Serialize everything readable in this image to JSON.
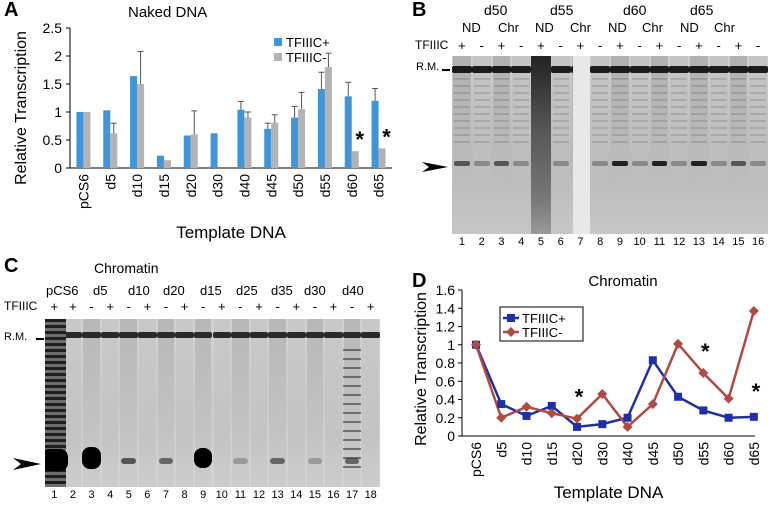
{
  "figure": {
    "panels": [
      {
        "label": "A"
      },
      {
        "label": "B"
      },
      {
        "label": "C"
      },
      {
        "label": "D"
      }
    ]
  },
  "panelA": {
    "chart_data": {
      "type": "bar",
      "title": "Naked DNA",
      "xlabel": "Template DNA",
      "ylabel": "Relative Transcription",
      "ylim": [
        0,
        2.5
      ],
      "yticks": [
        "0",
        "0.5",
        "1",
        "1.5",
        "2",
        "2.5"
      ],
      "categories": [
        "pCS6",
        "d5",
        "d10",
        "d15",
        "d20",
        "d30",
        "d40",
        "d45",
        "d50",
        "d55",
        "d60",
        "d65"
      ],
      "series": [
        {
          "name": "TFIIIC+",
          "color": "#3f95d9",
          "values": [
            1.0,
            1.03,
            1.64,
            0.22,
            0.58,
            0.62,
            1.04,
            0.7,
            0.9,
            1.41,
            1.28,
            1.2
          ],
          "errors": [
            0,
            0,
            0,
            0,
            0,
            0,
            0.15,
            0.1,
            0.2,
            0.3,
            0.25,
            0.22
          ]
        },
        {
          "name": "TFIIIC-",
          "color": "#b3b3b3",
          "values": [
            1.0,
            0.62,
            1.5,
            0.14,
            0.6,
            null,
            0.9,
            0.81,
            1.05,
            1.8,
            0.3,
            0.35
          ],
          "errors": [
            0,
            0.18,
            0.58,
            0,
            0.42,
            0,
            0.1,
            0.14,
            0.3,
            0.25,
            0,
            0
          ]
        }
      ],
      "legend": "top-right",
      "annotations": [
        "*",
        "*"
      ]
    }
  },
  "panelB": {
    "groups": [
      "d50",
      "d55",
      "d60",
      "d65"
    ],
    "sub_labels": [
      "ND",
      "Chr",
      "ND",
      "Chr",
      "ND",
      "Chr",
      "ND",
      "Chr"
    ],
    "factor_label": "TFIIIC",
    "plus_minus": [
      "+",
      "-",
      "+",
      "-",
      "+",
      "-",
      "+",
      "-",
      "+",
      "-",
      "+",
      "-",
      "+",
      "-",
      "+",
      "-"
    ],
    "rm_label": "R.M.",
    "lane_numbers": [
      "1",
      "2",
      "3",
      "4",
      "5",
      "6",
      "7",
      "8",
      "9",
      "10",
      "11",
      "12",
      "13",
      "14",
      "15",
      "16"
    ]
  },
  "panelC": {
    "title": "Chromatin",
    "templates": [
      "pCS6",
      "d5",
      "d10",
      "d20",
      "d15",
      "d25",
      "d35",
      "d30",
      "d40"
    ],
    "factor_label": "TFIIIC",
    "plus_minus": [
      "+",
      "+",
      "-",
      "+",
      "-",
      "+",
      "-",
      "+",
      "-",
      "+",
      "-",
      "+",
      "-",
      "+",
      "-",
      "+",
      "-",
      "+"
    ],
    "rm_label": "R.M.",
    "lane_numbers": [
      "1",
      "2",
      "3",
      "4",
      "5",
      "6",
      "7",
      "8",
      "9",
      "10",
      "11",
      "12",
      "13",
      "14",
      "15",
      "16",
      "17",
      "18"
    ]
  },
  "panelD": {
    "chart_data": {
      "type": "line",
      "title": "Chromatin",
      "xlabel": "Template DNA",
      "ylabel": "Relative Transcription",
      "ylim": [
        0,
        1.6
      ],
      "yticks": [
        "0",
        "0.2",
        "0.4",
        "0.6",
        "0.8",
        "1",
        "1.2",
        "1.4",
        "1.6"
      ],
      "categories": [
        "pCS6",
        "d5",
        "d10",
        "d15",
        "d20",
        "d30",
        "d40",
        "d45",
        "d50",
        "d55",
        "d60",
        "d65"
      ],
      "series": [
        {
          "name": "TFIIIC+",
          "color": "#1f2fa8",
          "marker": "square",
          "values": [
            1.0,
            0.35,
            0.22,
            0.33,
            0.1,
            0.13,
            0.2,
            0.83,
            0.43,
            0.28,
            0.2,
            0.21
          ]
        },
        {
          "name": "TFIIIC-",
          "color": "#b04a42",
          "marker": "diamond",
          "values": [
            1.0,
            0.2,
            0.32,
            0.25,
            0.19,
            0.46,
            0.1,
            0.35,
            1.01,
            0.69,
            0.41,
            1.37
          ]
        }
      ],
      "legend": "top-left",
      "annotations": [
        "*",
        "*",
        "*"
      ]
    }
  }
}
